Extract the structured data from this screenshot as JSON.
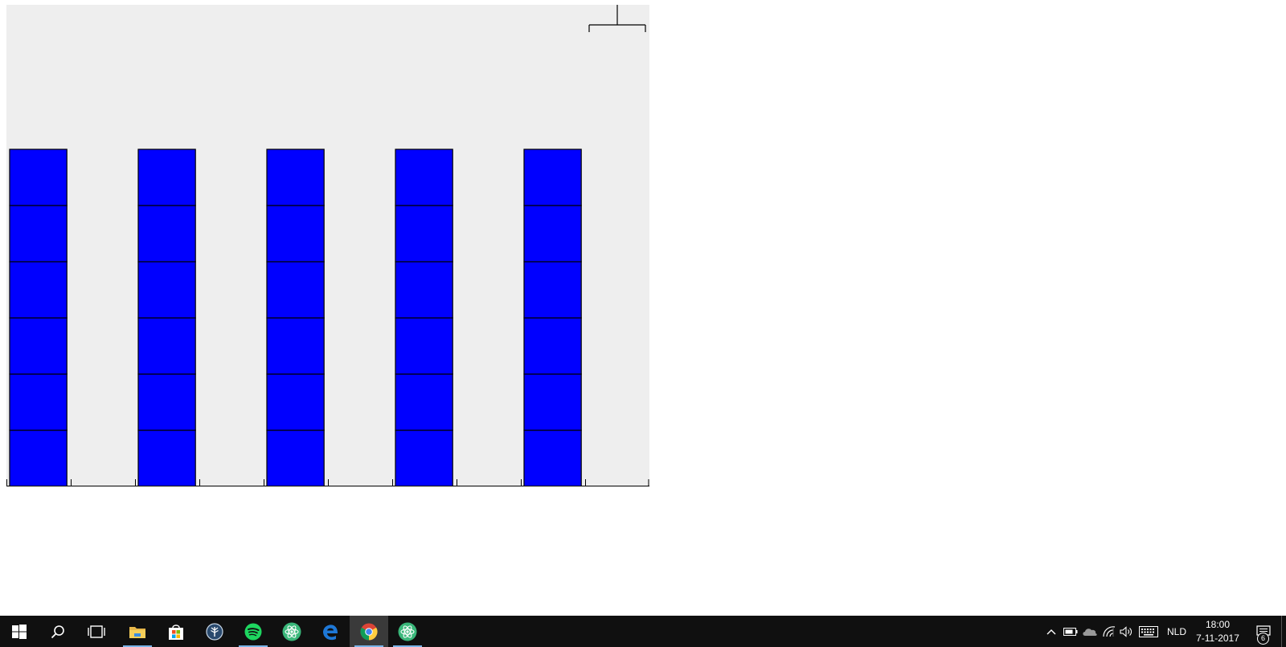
{
  "canvas": {
    "background": "#eeeeee",
    "columns": 5,
    "blocks_per_column": 6,
    "block_color": "#0000ff",
    "block_border": "#000000",
    "tick_count": 10
  },
  "taskbar": {
    "background": "#101010",
    "pinned": [
      {
        "name": "start-button",
        "icon": "windows-logo-icon"
      },
      {
        "name": "search-button",
        "icon": "search-icon"
      },
      {
        "name": "task-view-button",
        "icon": "task-view-icon"
      },
      {
        "name": "file-explorer-button",
        "icon": "folder-icon",
        "running": true
      },
      {
        "name": "store-button",
        "icon": "store-bag-icon"
      },
      {
        "name": "app-tree-button",
        "icon": "tree-icon"
      },
      {
        "name": "spotify-button",
        "icon": "spotify-icon",
        "running": true
      },
      {
        "name": "atom-app-button",
        "icon": "atom-icon"
      },
      {
        "name": "edge-button",
        "icon": "edge-icon"
      },
      {
        "name": "chrome-button",
        "icon": "chrome-icon",
        "active": true
      },
      {
        "name": "atom-app-2-button",
        "icon": "atom-icon",
        "running": true
      }
    ],
    "tray": {
      "language": "NLD",
      "time": "18:00",
      "date": "7-11-2017",
      "notification_count": "6"
    }
  }
}
